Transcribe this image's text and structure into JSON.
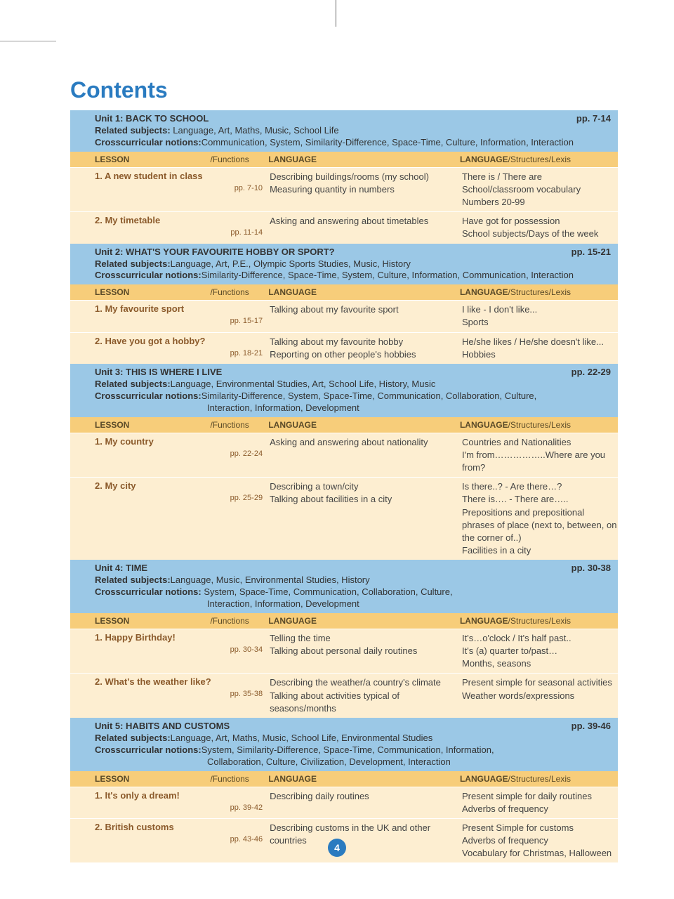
{
  "page": {
    "title": "Contents",
    "number": "4",
    "colors": {
      "unit_bg": "#9bc8e6",
      "colhead_bg": "#f7cd7a",
      "row_bg": "#fdeed1",
      "title_color": "#2a7bc0"
    }
  },
  "headers": {
    "lesson": "LESSON",
    "functions": "/Functions",
    "language": "LANGUAGE",
    "structures": "LANGUAGE",
    "structures_suffix": "/Structures/Lexis"
  },
  "units": [
    {
      "title": "Unit 1: BACK TO SCHOOL",
      "pages": "pp. 7-14",
      "related_label": "Related subjects:",
      "related": " Language, Art, Maths, Music, School Life",
      "notions_label": "Crosscurricular notions:",
      "notions": "Communication, System, Similarity-Difference, Space-Time, Culture, Information, Interaction",
      "notions_2": "",
      "lessons": [
        {
          "title": "1. A new student in class",
          "pp": "pp. 7-10",
          "language": "Describing buildings/rooms (my school)\nMeasuring quantity in numbers",
          "structures": "There is / There are\nSchool/classroom vocabulary\nNumbers 20-99"
        },
        {
          "title": "2. My timetable",
          "pp": "pp. 11-14",
          "language": "Asking and answering about timetables",
          "structures": "Have got for possession\nSchool subjects/Days of the week"
        }
      ]
    },
    {
      "title": "Unit 2: WHAT'S YOUR FAVOURITE HOBBY OR SPORT?",
      "pages": "pp. 15-21",
      "related_label": "Related subjects:",
      "related": "Language, Art, P.E., Olympic Sports Studies, Music, History",
      "notions_label": "Crosscurricular notions:",
      "notions": "Similarity-Difference, Space-Time, System, Culture, Information, Communication, Interaction",
      "notions_2": "",
      "lessons": [
        {
          "title": "1. My favourite sport",
          "pp": "pp. 15-17",
          "language": "Talking about my favourite sport",
          "structures": "I like - I don't like...\nSports"
        },
        {
          "title": "2. Have you got a hobby?",
          "pp": "pp. 18-21",
          "language": "Talking about my favourite hobby\nReporting on other people's hobbies",
          "structures": "He/she likes / He/she doesn't like...\nHobbies"
        }
      ]
    },
    {
      "title": "Unit 3: THIS IS WHERE I LIVE",
      "pages": "pp. 22-29",
      "related_label": "Related subjects:",
      "related": "Language, Environmental Studies, Art, School Life, History, Music",
      "notions_label": "Crosscurricular notions:",
      "notions": "Similarity-Difference, System, Space-Time, Communication, Collaboration, Culture,",
      "notions_2": "Interaction, Information, Development",
      "lessons": [
        {
          "title": "1. My country",
          "pp": "pp. 22-24",
          "language": "Asking and answering about nationality",
          "structures": "Countries and Nationalities\nI'm from……………..Where are you from?"
        },
        {
          "title": "2. My city",
          "pp": "pp. 25-29",
          "language": "Describing a town/city\nTalking about facilities in a city",
          "structures": "Is there..? - Are there…?\nThere is…. - There are…..\nPrepositions and prepositional phrases of place (next to, between, on the corner of..)\nFacilities in a city"
        }
      ]
    },
    {
      "title": "Unit 4: TIME",
      "pages": "pp. 30-38",
      "related_label": "Related subjects:",
      "related": "Language, Music, Environmental Studies, History",
      "notions_label": "Crosscurricular notions:",
      "notions": " System, Space-Time, Communication, Collaboration, Culture,",
      "notions_2": "Interaction, Information, Development",
      "lessons": [
        {
          "title": "1. Happy Birthday!",
          "pp": "pp. 30-34",
          "language": "Telling the time\nTalking about personal daily routines",
          "structures": "It's…o'clock / It's half past..\nIt's (a) quarter to/past…\nMonths, seasons"
        },
        {
          "title": "2. What's the weather like?",
          "pp": "pp. 35-38",
          "language": "Describing the weather/a country's climate\nTalking about activities typical of seasons/months",
          "structures": "Present simple for seasonal activities\nWeather words/expressions"
        }
      ]
    },
    {
      "title": "Unit 5: HABITS AND CUSTOMS",
      "pages": "pp. 39-46",
      "related_label": "Related subjects:",
      "related": "Language, Art, Maths, Music, School Life, Environmental Studies",
      "notions_label": "Crosscurricular notions:",
      "notions": "System, Similarity-Difference, Space-Time, Communication, Information,",
      "notions_2": "Collaboration, Culture, Civilization, Development, Interaction",
      "lessons": [
        {
          "title": "1. It's only a dream!",
          "pp": "pp. 39-42",
          "language": "Describing daily routines",
          "structures": "Present simple for daily routines\nAdverbs of frequency"
        },
        {
          "title": "2. British customs",
          "pp": "pp. 43-46",
          "language": "Describing customs in the UK and other countries",
          "structures": "Present Simple for customs\nAdverbs of frequency\nVocabulary for Christmas, Halloween"
        }
      ]
    }
  ]
}
